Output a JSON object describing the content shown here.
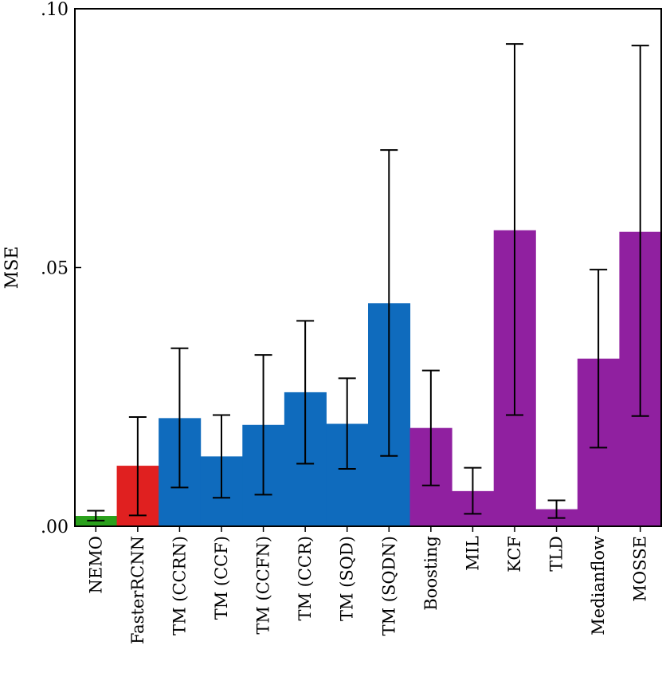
{
  "chart_data": {
    "type": "bar",
    "ylabel": "MSE",
    "ylim": [
      0,
      0.1
    ],
    "yticks": [
      {
        "value": 0.0,
        "label": ".00"
      },
      {
        "value": 0.05,
        "label": ".05"
      },
      {
        "value": 0.1,
        "label": ".10"
      }
    ],
    "categories": [
      "NEMO",
      "FasterRCNN",
      "TM (CCRN)",
      "TM (CCF)",
      "TM (CCFN)",
      "TM (CCR)",
      "TM (SQD)",
      "TM (SQDN)",
      "Boosting",
      "MIL",
      "KCF",
      "TLD",
      "Medianflow",
      "MOSSE"
    ],
    "values": [
      0.002,
      0.0117,
      0.0209,
      0.0135,
      0.0196,
      0.0259,
      0.0198,
      0.0431,
      0.019,
      0.0068,
      0.0572,
      0.0033,
      0.0324,
      0.0569
    ],
    "error_low": [
      0.0011,
      0.0021,
      0.0075,
      0.0055,
      0.0061,
      0.0121,
      0.0111,
      0.0136,
      0.0079,
      0.0024,
      0.0215,
      0.0016,
      0.0152,
      0.0213
    ],
    "error_high": [
      0.003,
      0.0211,
      0.0344,
      0.0215,
      0.0331,
      0.0397,
      0.0286,
      0.0727,
      0.0301,
      0.0113,
      0.0932,
      0.005,
      0.0496,
      0.0929
    ],
    "colors": [
      "#2aa01c",
      "#e02020",
      "#0f6bbd",
      "#0f6bbd",
      "#0f6bbd",
      "#0f6bbd",
      "#0f6bbd",
      "#0f6bbd",
      "#9020a0",
      "#9020a0",
      "#9020a0",
      "#9020a0",
      "#9020a0",
      "#9020a0"
    ]
  }
}
